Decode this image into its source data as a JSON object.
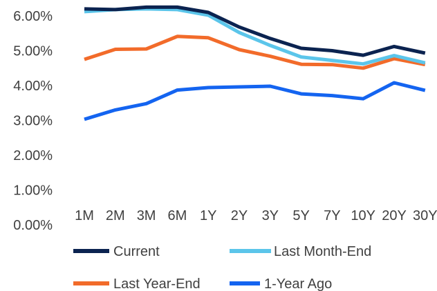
{
  "chart_data": {
    "type": "line",
    "title": "",
    "xlabel": "",
    "ylabel": "",
    "categories": [
      "1M",
      "2M",
      "3M",
      "6M",
      "1Y",
      "2Y",
      "3Y",
      "5Y",
      "7Y",
      "10Y",
      "20Y",
      "30Y"
    ],
    "y_ticks": [
      "0.00%",
      "1.00%",
      "2.00%",
      "3.00%",
      "4.00%",
      "5.00%",
      "6.00%"
    ],
    "ylim": [
      0,
      6.5
    ],
    "grid": false,
    "legend_position": "bottom",
    "series": [
      {
        "name": "Current",
        "color": "#0b2350",
        "values": [
          6.2,
          6.18,
          6.25,
          6.25,
          6.1,
          5.68,
          5.35,
          5.07,
          5.0,
          4.87,
          5.12,
          4.93
        ]
      },
      {
        "name": "Last Month-End",
        "color": "#5bc5ea",
        "values": [
          6.12,
          6.18,
          6.2,
          6.18,
          6.02,
          5.52,
          5.15,
          4.82,
          4.72,
          4.62,
          4.86,
          4.65
        ]
      },
      {
        "name": "Last Year-End",
        "color": "#f26b2a",
        "values": [
          4.75,
          5.04,
          5.05,
          5.41,
          5.37,
          5.03,
          4.84,
          4.61,
          4.6,
          4.5,
          4.77,
          4.6
        ]
      },
      {
        "name": "1-Year Ago",
        "color": "#1464f0",
        "values": [
          3.03,
          3.3,
          3.48,
          3.87,
          3.94,
          3.96,
          3.98,
          3.76,
          3.71,
          3.62,
          4.08,
          3.86
        ]
      }
    ]
  }
}
